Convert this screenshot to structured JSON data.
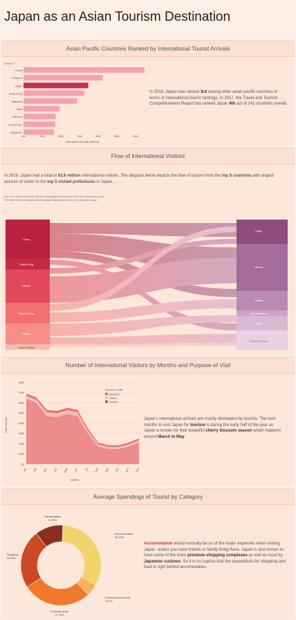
{
  "page": {
    "title": "Japan as an Asian Tourism Destination"
  },
  "section1": {
    "header": "Asian Pacific Countries Ranked by International Tourist Arrivals",
    "axis_header": "Count.. F",
    "xlabel": "International Arrivals (millions)",
    "xticks": [
      "0M",
      "10M",
      "20M",
      "30M",
      "40M",
      "50M",
      "60M"
    ],
    "text_parts": [
      "In 2018, Japan was ranked ",
      "3rd",
      " among other asian pacific countries in terms of  international tourist rankings. In 2017, the Travel and Tourism Competitiveness Report has ranked Japan ",
      "4th",
      " out of 141 countries overall."
    ]
  },
  "section2": {
    "header": "Flow of International Visitors",
    "para_parts": [
      "In 2019, Japan had a total of ",
      "63.8 million",
      " international visitors.  The diagram below depicts the flow of visitors from the ",
      "top 5 countries",
      " with largest amount of visitor to the ",
      "top 5 visited prefectures",
      " in Japan."
    ],
    "note1": "Note: The \"others\" block on the left side of the diagram represents the rest of the countries in the world.",
    "note2": "The \"others\" block on the right side of the diagram represents the other 42 prefectures in Japan.",
    "left_nodes": [
      "China",
      "Hong Kong",
      "Others",
      "South Korea",
      "Taiwan",
      "United States"
    ],
    "right_nodes": [
      "Tokyo",
      "Others",
      "Osaka",
      "Nara Prefecture",
      "Kyoto",
      "Chiba Prefecture"
    ]
  },
  "section3": {
    "header": "Number of International Visitors by Months and Purpose of Visit",
    "ylabel": "Visitor Arrivals",
    "xlabel": "Months",
    "legend_title": "Purpose of Visit",
    "legend": [
      "Business",
      "Others",
      "Tourism"
    ],
    "yticks": [
      "800K",
      "700K",
      "600K",
      "500K",
      "400K",
      "300K",
      "200K",
      "100K",
      "0K"
    ],
    "months": [
      "Jan",
      "Feb",
      "Mar",
      "Apr",
      "May",
      "Jun",
      "Jul",
      "Aug",
      "Sep",
      "Oct",
      "Nov",
      "Dec"
    ],
    "text_parts": [
      "Japan's international arrivals are mostly dominated by tourists. The best months to visit Japan for ",
      "tourism",
      " is during the early half of the year as Japan is known for their beautiful ",
      "cherry blossom season",
      " which happens around ",
      "March to May",
      "."
    ]
  },
  "section4": {
    "header": "Average Spendings of Tourist by Category",
    "text_parts": [
      "Accomodation",
      " would normally be on of the major expenses when visiting Japan, unless you have friends or family living there. Japan is also known to have some of the more ",
      "premium shopping complexes",
      " as well as must try ",
      "Japanese cuisines",
      ". So it is no suprise that the expenditure for shopping and food is right behind accomodation."
    ]
  },
  "colors": {
    "background": "#fdeee6",
    "bar": "#f4a3ae",
    "bar_highlight": "#c0334c",
    "tourism": "#ec8c8c",
    "others": "#f6bdb0",
    "business": "#e26a72"
  },
  "chart_data": [
    {
      "type": "bar",
      "orientation": "horizontal",
      "categories": [
        "China",
        "Thailand",
        "Japan",
        "Hong Kong",
        "Malaysia",
        "India",
        "Vietnam",
        "Korea Rep.",
        "Singapore"
      ],
      "values": [
        62.9,
        38.2,
        31.2,
        29.3,
        25.8,
        17.4,
        15.5,
        15.3,
        14.7
      ],
      "highlight": "Japan",
      "xlabel": "International Arrivals (millions)",
      "xlim": [
        0,
        60
      ]
    },
    {
      "type": "area",
      "x": [
        "Jan",
        "Feb",
        "Mar",
        "Apr",
        "May",
        "Jun",
        "Jul",
        "Aug",
        "Sep",
        "Oct",
        "Nov",
        "Dec"
      ],
      "series": [
        {
          "name": "Tourism",
          "values": [
            640,
            600,
            470,
            460,
            490,
            470,
            300,
            170,
            150,
            150,
            170,
            210
          ]
        },
        {
          "name": "Others",
          "values": [
            30,
            30,
            40,
            40,
            40,
            40,
            30,
            25,
            20,
            20,
            25,
            25
          ]
        },
        {
          "name": "Business",
          "values": [
            20,
            20,
            20,
            20,
            20,
            20,
            20,
            15,
            15,
            15,
            15,
            15
          ]
        }
      ],
      "stacked": true,
      "ylim": [
        0,
        800
      ],
      "ylabel": "Visitor Arrivals",
      "xlabel": "Months"
    },
    {
      "type": "pie",
      "donut": true,
      "slices": [
        {
          "label": "Accommodation",
          "value": 32.42,
          "text": "32.42%",
          "color": "#f5d36b"
        },
        {
          "label": "Entertainment service",
          "value": 4.91,
          "text": "4.91%",
          "color": "#f8b35a"
        },
        {
          "label": "Food and drink",
          "value": 27.79,
          "text": "27.79%",
          "color": "#ef7a2c"
        },
        {
          "label": "Shopping",
          "value": 23.59,
          "text": "23.59%",
          "color": "#c94a25"
        },
        {
          "label": "Transportation",
          "value": 11.29,
          "text": "11.29%",
          "color": "#8b2e1f"
        }
      ]
    }
  ]
}
